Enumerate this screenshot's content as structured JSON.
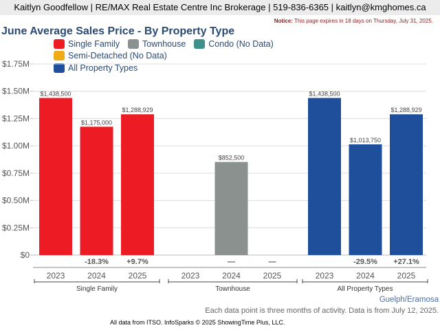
{
  "header": {
    "agent_line": "Kaitlyn Goodfellow | RE/MAX Real Estate Centre Inc Brokerage | 519-836-6365 | kaitlyn@kmghomes.ca",
    "notice_label": "Notice:",
    "notice_text": " This page expires in 18 days on Thursday, July 31, 2025."
  },
  "footer": {
    "location": "Guelph/Eramosa",
    "note": "Each data point is three months of activity. Data is from July 12, 2025.",
    "source": "All data from ITSO. InfoSparks © 2025 ShowingTime Plus, LLC."
  },
  "chart_data": {
    "type": "bar",
    "title": "June Average Sales Price - By Property Type",
    "legend": [
      {
        "name": "Single Family",
        "color": "#ed1c24"
      },
      {
        "name": "Townhouse",
        "color": "#8a918e"
      },
      {
        "name": "Condo (No Data)",
        "color": "#3f8f8c"
      },
      {
        "name": "Semi-Detached (No Data)",
        "color": "#f0ac16"
      },
      {
        "name": "All Property Types",
        "color": "#1f4e9a"
      }
    ],
    "legend_placement": "top",
    "ylim": [
      0,
      1750000
    ],
    "yticks": [
      {
        "value": 0,
        "label": "$0"
      },
      {
        "value": 250000,
        "label": "$0.25M"
      },
      {
        "value": 500000,
        "label": "$0.50M"
      },
      {
        "value": 750000,
        "label": "$0.75M"
      },
      {
        "value": 1000000,
        "label": "$1.00M"
      },
      {
        "value": 1250000,
        "label": "$1.25M"
      },
      {
        "value": 1500000,
        "label": "$1.50M"
      },
      {
        "value": 1750000,
        "label": "$1.75M"
      }
    ],
    "grid": true,
    "groups": [
      {
        "name": "Single Family",
        "color": "#ed1c24",
        "bars": [
          {
            "year": "2023",
            "value": 1438500,
            "label": "$1,438,500",
            "change": ""
          },
          {
            "year": "2024",
            "value": 1175000,
            "label": "$1,175,000",
            "change": "-18.3%"
          },
          {
            "year": "2025",
            "value": 1288929,
            "label": "$1,288,929",
            "change": "+9.7%"
          }
        ]
      },
      {
        "name": "Townhouse",
        "color": "#8a918e",
        "bars": [
          {
            "year": "2023",
            "value": null,
            "label": "",
            "change": ""
          },
          {
            "year": "2024",
            "value": 852500,
            "label": "$852,500",
            "change": "—"
          },
          {
            "year": "2025",
            "value": null,
            "label": "",
            "change": "—"
          }
        ]
      },
      {
        "name": "All Property Types",
        "color": "#1f4e9a",
        "bars": [
          {
            "year": "2023",
            "value": 1438500,
            "label": "$1,438,500",
            "change": ""
          },
          {
            "year": "2024",
            "value": 1013750,
            "label": "$1,013,750",
            "change": "-29.5%"
          },
          {
            "year": "2025",
            "value": 1288929,
            "label": "$1,288,929",
            "change": "+27.1%"
          }
        ]
      }
    ]
  }
}
